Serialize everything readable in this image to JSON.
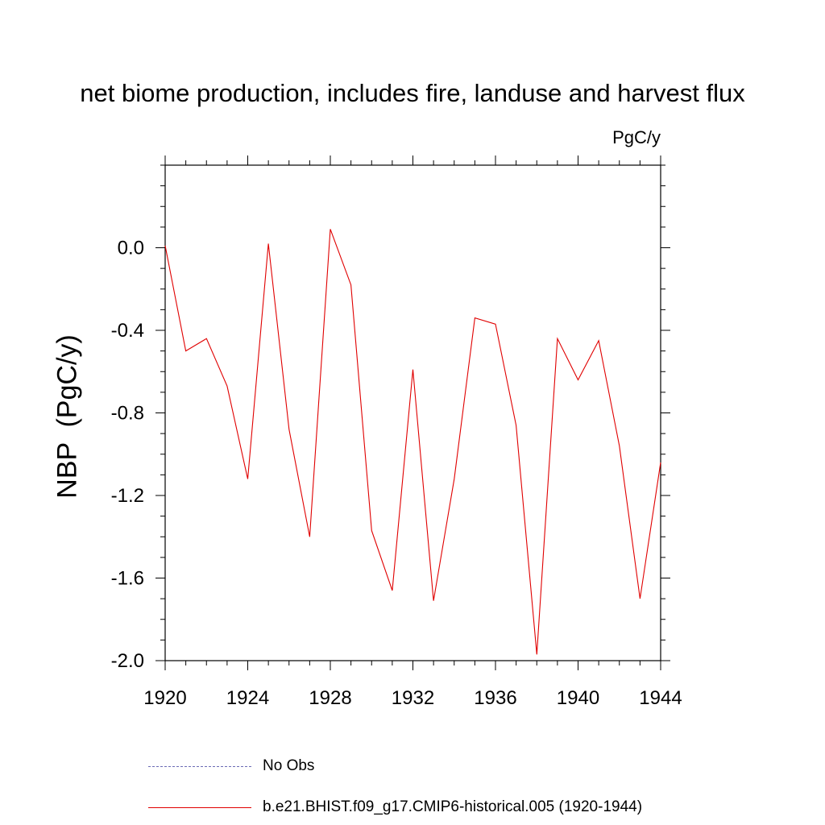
{
  "chart_data": {
    "type": "line",
    "title": "net biome production, includes fire, landuse and harvest flux",
    "units": "PgC/y",
    "ylabel": "NBP  (PgC/y)",
    "xlim": [
      1920,
      1944
    ],
    "ylim": [
      -2.0,
      0.4
    ],
    "x_ticks": [
      1920,
      1924,
      1928,
      1932,
      1936,
      1940,
      1944
    ],
    "x_tick_labels": [
      "1920",
      "1924",
      "1928",
      "1932",
      "1936",
      "1940",
      "1944"
    ],
    "y_ticks": [
      0.0,
      -0.4,
      -0.8,
      -1.2,
      -1.6,
      -2.0
    ],
    "y_tick_labels": [
      "0.0",
      "-0.4",
      "-0.8",
      "-1.2",
      "-1.6",
      "-2.0"
    ],
    "series": [
      {
        "name": "b.e21.BHIST.f09_g17.CMIP6-historical.005 (1920-1944)",
        "color": "#e00000",
        "style": "solid",
        "x": [
          1920,
          1921,
          1922,
          1923,
          1924,
          1925,
          1926,
          1927,
          1928,
          1929,
          1930,
          1931,
          1932,
          1933,
          1934,
          1935,
          1936,
          1937,
          1938,
          1939,
          1940,
          1941,
          1942,
          1943,
          1944
        ],
        "y": [
          0.01,
          -0.5,
          -0.44,
          -0.67,
          -1.12,
          0.02,
          -0.88,
          -1.4,
          0.09,
          -0.18,
          -1.37,
          -1.66,
          -0.59,
          -1.71,
          -1.12,
          -0.34,
          -0.37,
          -0.86,
          -1.97,
          -0.44,
          -0.64,
          -0.45,
          -0.96,
          -1.7,
          -1.04
        ]
      }
    ],
    "legend": [
      {
        "label": "No Obs",
        "color": "#6b6bb5",
        "style": "dashed"
      },
      {
        "label": "b.e21.BHIST.f09_g17.CMIP6-historical.005 (1920-1944)",
        "color": "#e00000",
        "style": "solid"
      }
    ],
    "legend_position": "bottom",
    "grid": false
  }
}
